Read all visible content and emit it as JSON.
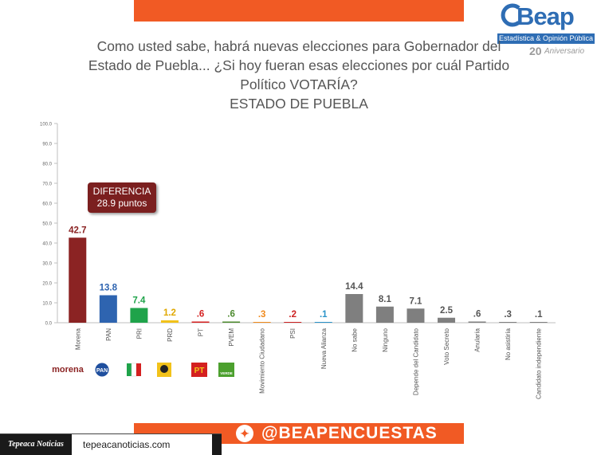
{
  "logo": {
    "name": "Beap",
    "subtitle": "Estadística & Opinión Pública",
    "anniversary_number": "20",
    "anniversary_text": "Aniversario"
  },
  "title": {
    "line1": "Como usted sabe, habrá nuevas elecciones para Gobernador del",
    "line2": "Estado de Puebla... ¿Si hoy fueran esas elecciones por cuál Partido",
    "line3": "Político VOTARÍA?",
    "line4": "ESTADO DE PUEBLA"
  },
  "callout": {
    "line1": "DIFERENCIA",
    "line2": "28.9 puntos"
  },
  "party_logos": {
    "morena": "morena",
    "pan": "PAN",
    "pt": "PT",
    "pvem": "VERDE"
  },
  "twitter": {
    "handle": "@BEAPENCUESTAS",
    "icon": "twitter-bird-icon"
  },
  "footer": {
    "brand": "Tepeaca Noticias",
    "url": "tepeacanoticias.com"
  },
  "chart_data": {
    "type": "bar",
    "title": "",
    "ylim": [
      0,
      100
    ],
    "yticks": [
      "0.0",
      "10.0",
      "20.0",
      "30.0",
      "40.0",
      "50.0",
      "60.0",
      "70.0",
      "80.0",
      "90.0",
      "100.0"
    ],
    "grid": false,
    "categories": [
      "Morena",
      "PAN",
      "PRI",
      "PRD",
      "PT",
      "PVEM",
      "Movimiento Ciudadano",
      "PSI",
      "Nueva Alianza",
      "No sabe",
      "Ninguno",
      "Depende del Candidato",
      "Voto Secreto",
      "Anularía",
      "No asistiría",
      "Candidato independiente"
    ],
    "values": [
      42.7,
      13.8,
      7.4,
      1.2,
      0.6,
      0.6,
      0.3,
      0.2,
      0.1,
      14.4,
      8.1,
      7.1,
      2.5,
      0.6,
      0.3,
      0.1
    ],
    "data_labels": [
      "42.7",
      "13.8",
      "7.4",
      "1.2",
      ".6",
      ".6",
      ".3",
      ".2",
      ".1",
      "14.4",
      "8.1",
      "7.1",
      "2.5",
      ".6",
      ".3",
      ".1"
    ],
    "colors": [
      "#8b2323",
      "#2e64b0",
      "#1fa34a",
      "#f2c21a",
      "#d42020",
      "#4c8a2e",
      "#f08a1c",
      "#cc2222",
      "#2a93c9",
      "#7f7f7f",
      "#7f7f7f",
      "#7f7f7f",
      "#7f7f7f",
      "#7f7f7f",
      "#7f7f7f",
      "#7f7f7f"
    ],
    "label_colors": [
      "#8b2323",
      "#2e64b0",
      "#1fa34a",
      "#e0a800",
      "#d42020",
      "#4c8a2e",
      "#f08a1c",
      "#cc2222",
      "#2a93c9",
      "#555555",
      "#555555",
      "#555555",
      "#555555",
      "#555555",
      "#555555",
      "#555555"
    ]
  }
}
